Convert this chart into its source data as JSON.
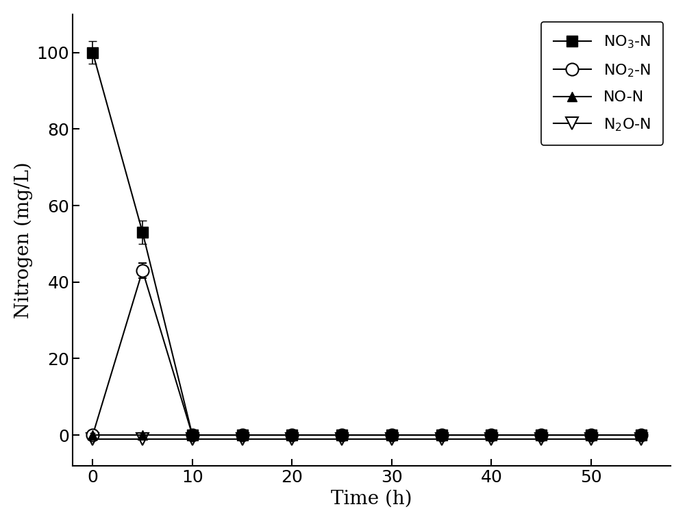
{
  "no3_x": [
    0,
    5,
    10,
    15,
    20,
    25,
    30,
    35,
    40,
    45,
    50,
    55
  ],
  "no3_y": [
    100,
    53,
    0,
    0,
    0,
    0,
    0,
    0,
    0,
    0,
    0,
    0
  ],
  "no3_yerr": [
    3,
    3,
    0,
    0,
    0,
    0,
    0,
    0,
    0,
    0,
    0,
    0
  ],
  "no2_x": [
    0,
    5,
    10,
    15,
    20,
    25,
    30,
    35,
    40,
    45,
    50,
    55
  ],
  "no2_y": [
    0,
    43,
    0,
    0,
    0,
    0,
    0,
    0,
    0,
    0,
    0,
    0
  ],
  "no2_yerr": [
    0,
    2,
    0,
    0,
    0,
    0,
    0,
    0,
    0,
    0,
    0,
    0
  ],
  "no_x": [
    0,
    5,
    10,
    15,
    20,
    25,
    30,
    35,
    40,
    45,
    50,
    55
  ],
  "no_y": [
    0,
    0,
    0,
    0,
    0,
    0,
    0,
    0,
    0,
    0,
    0,
    0
  ],
  "no_yerr": [
    0.5,
    0.5,
    0.5,
    0.5,
    0.5,
    0.5,
    0.5,
    0.5,
    0.5,
    0.5,
    0.5,
    0.5
  ],
  "n2o_x": [
    0,
    5,
    10,
    15,
    20,
    25,
    30,
    35,
    40,
    45,
    50,
    55
  ],
  "n2o_y": [
    -1,
    -1,
    -1,
    -1,
    -1,
    -1,
    -1,
    -1,
    -1,
    -1,
    -1,
    -1
  ],
  "n2o_yerr": [
    0.4,
    0.4,
    0.4,
    0.4,
    0.4,
    0.4,
    0.4,
    0.4,
    0.4,
    0.4,
    0.4,
    0.4
  ],
  "xlim": [
    -2,
    58
  ],
  "ylim": [
    -8,
    110
  ],
  "xticks": [
    0,
    10,
    20,
    30,
    40,
    50
  ],
  "yticks": [
    0,
    20,
    40,
    60,
    80,
    100
  ],
  "xlabel": "Time (h)",
  "ylabel": "Nitrogen (mg/L)",
  "color": "#000000",
  "figsize": [
    10,
    7.62
  ],
  "dpi": 100
}
